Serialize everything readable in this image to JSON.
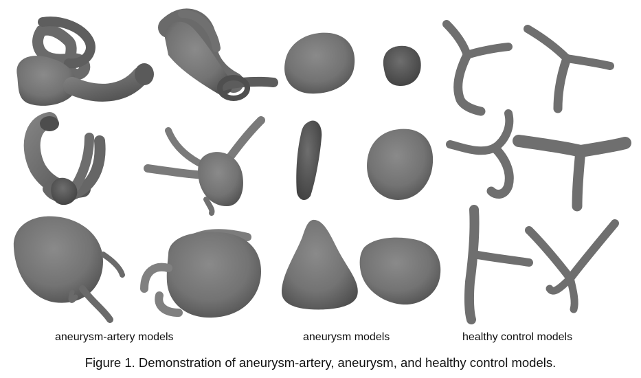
{
  "figure": {
    "group_labels": {
      "aneurysm_artery": "aneurysm-artery models",
      "aneurysm": "aneurysm models",
      "healthy_control": "healthy control models"
    },
    "caption": "Figure 1. Demonstration of aneurysm-artery, aneurysm, and healthy control models."
  }
}
